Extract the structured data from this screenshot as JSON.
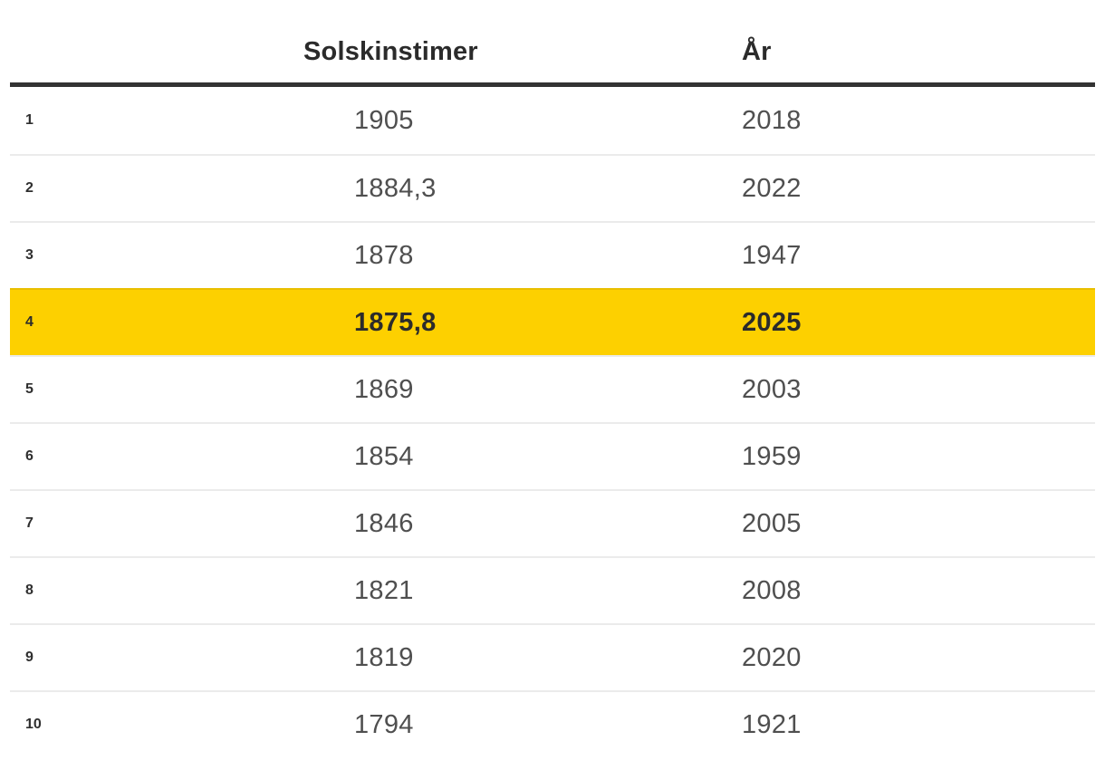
{
  "chart_data": {
    "type": "table",
    "title": "",
    "rank_header": "",
    "columns": [
      "Solskinstimer",
      "År"
    ],
    "rows": [
      {
        "rank": "1",
        "solskinstimer": "1905",
        "year": "2018",
        "highlighted": false
      },
      {
        "rank": "2",
        "solskinstimer": "1884,3",
        "year": "2022",
        "highlighted": false
      },
      {
        "rank": "3",
        "solskinstimer": "1878",
        "year": "1947",
        "highlighted": false
      },
      {
        "rank": "4",
        "solskinstimer": "1875,8",
        "year": "2025",
        "highlighted": true
      },
      {
        "rank": "5",
        "solskinstimer": "1869",
        "year": "2003",
        "highlighted": false
      },
      {
        "rank": "6",
        "solskinstimer": "1854",
        "year": "1959",
        "highlighted": false
      },
      {
        "rank": "7",
        "solskinstimer": "1846",
        "year": "2005",
        "highlighted": false
      },
      {
        "rank": "8",
        "solskinstimer": "1821",
        "year": "2008",
        "highlighted": false
      },
      {
        "rank": "9",
        "solskinstimer": "1819",
        "year": "2020",
        "highlighted": false
      },
      {
        "rank": "10",
        "solskinstimer": "1794",
        "year": "1921",
        "highlighted": false
      }
    ],
    "layout": {
      "grid": "horizontal row dividers only",
      "highlighted_rank": "4"
    }
  },
  "colors": {
    "highlight_background": "#fdd000",
    "header_rule": "#333333",
    "row_divider": "rgba(0,0,0,0.08)",
    "value_text": "#4f4f4f",
    "bold_text": "#2b2b2b"
  }
}
